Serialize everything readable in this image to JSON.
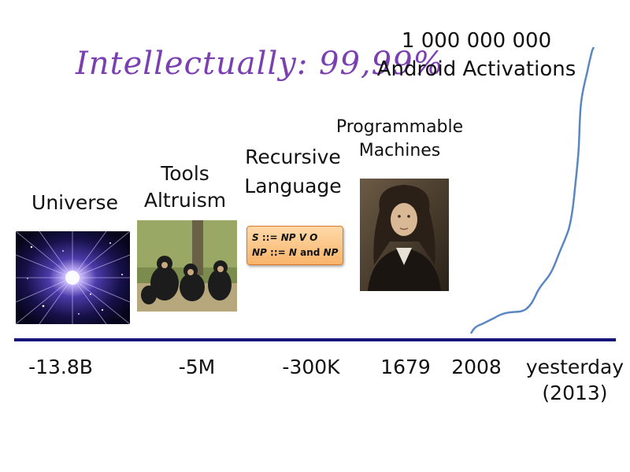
{
  "annotation": {
    "handwritten": "Intellectually: 99,99%"
  },
  "headline": {
    "count": "1 000 000 000",
    "caption": "Android Activations"
  },
  "milestones": {
    "universe": {
      "label": "Universe"
    },
    "tools": {
      "line1": "Tools",
      "line2": "Altruism"
    },
    "language": {
      "line1": "Recursive",
      "line2": "Language"
    },
    "machines": {
      "line1": "Programmable",
      "line2": "Machines"
    }
  },
  "grammar": {
    "rule1": {
      "lhs": "S",
      "op": "::=",
      "rhs": "NP V O"
    },
    "rule2": {
      "lhs": "NP",
      "op": "::=",
      "rhs_a": "N",
      "conj": "and",
      "rhs_b": "NP"
    }
  },
  "timeline": {
    "ticks": [
      "-13.8B",
      "-5M",
      "-300K",
      "1679",
      "2008",
      "yesterday",
      "(2013)"
    ]
  },
  "colors": {
    "axis": "#15157a",
    "curve": "#5b86c4",
    "handwriting": "#7a3fb0",
    "box": "#f9b46b"
  }
}
